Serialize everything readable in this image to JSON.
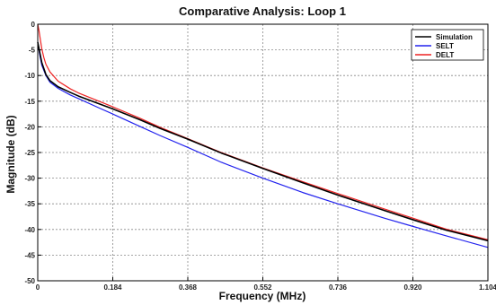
{
  "chart_data": {
    "type": "line",
    "title": "Comparative Analysis: Loop 1",
    "xlabel": "Frequency (MHz)",
    "ylabel": "Magnitude (dB)",
    "xlim": [
      0,
      1.104
    ],
    "ylim": [
      -50,
      0
    ],
    "xticks": [
      0,
      0.184,
      0.368,
      0.552,
      0.736,
      0.92,
      1.104
    ],
    "xtick_labels": [
      "0",
      "0.184",
      "0.368",
      "0.552",
      "0.736",
      "0.920",
      "1.104"
    ],
    "yticks": [
      0,
      -5,
      -10,
      -15,
      -20,
      -25,
      -30,
      -35,
      -40,
      -45,
      -50
    ],
    "ytick_labels": [
      "0",
      "-5",
      "-10",
      "-15",
      "-20",
      "-25",
      "-30",
      "-35",
      "-40",
      "-45",
      "-50"
    ],
    "grid": true,
    "legend_position": "top-right",
    "series": [
      {
        "name": "Simulation",
        "color": "#000000",
        "x": [
          0,
          0.005,
          0.01,
          0.02,
          0.03,
          0.05,
          0.08,
          0.1,
          0.15,
          0.184,
          0.25,
          0.3,
          0.368,
          0.45,
          0.552,
          0.65,
          0.736,
          0.85,
          0.92,
          1.0,
          1.104
        ],
        "y": [
          -3.5,
          -5.5,
          -7.5,
          -9.8,
          -11,
          -12.2,
          -13.3,
          -14,
          -15.5,
          -16.5,
          -18.6,
          -20.3,
          -22.4,
          -25.1,
          -28.1,
          -30.9,
          -33.3,
          -36.3,
          -38.1,
          -40.1,
          -42.2
        ]
      },
      {
        "name": "SELT",
        "color": "#2222ee",
        "x": [
          0,
          0.005,
          0.01,
          0.02,
          0.03,
          0.05,
          0.08,
          0.1,
          0.15,
          0.184,
          0.25,
          0.3,
          0.368,
          0.45,
          0.552,
          0.65,
          0.736,
          0.85,
          0.92,
          1.0,
          1.104
        ],
        "y": [
          -3.5,
          -6,
          -8,
          -10,
          -11.3,
          -12.5,
          -13.8,
          -14.5,
          -16.3,
          -17.5,
          -19.9,
          -21.7,
          -24.0,
          -26.9,
          -30.0,
          -32.8,
          -35.0,
          -37.8,
          -39.4,
          -41.2,
          -43.5
        ]
      },
      {
        "name": "DELT",
        "color": "#ee2222",
        "x": [
          0,
          0.003,
          0.006,
          0.01,
          0.015,
          0.02,
          0.03,
          0.05,
          0.08,
          0.1,
          0.15,
          0.184,
          0.25,
          0.3,
          0.368,
          0.45,
          0.552,
          0.65,
          0.736,
          0.85,
          0.92,
          1.0,
          1.104
        ],
        "y": [
          0,
          -1.2,
          -2.8,
          -4.8,
          -6.5,
          -7.8,
          -9.3,
          -11.1,
          -12.6,
          -13.4,
          -15.0,
          -16.1,
          -18.3,
          -20.1,
          -22.3,
          -25.0,
          -28.0,
          -30.7,
          -33.0,
          -36.0,
          -37.8,
          -39.9,
          -42.0
        ]
      }
    ]
  }
}
